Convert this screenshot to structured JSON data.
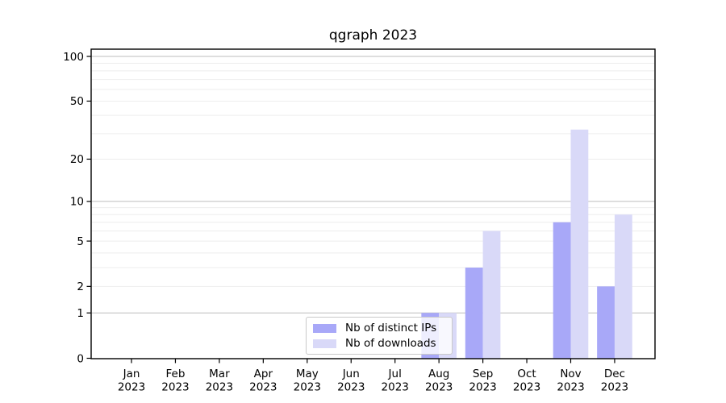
{
  "chart_data": {
    "type": "bar",
    "title": "qgraph 2023",
    "categories": [
      "Jan 2023",
      "Feb 2023",
      "Mar 2023",
      "Apr 2023",
      "May 2023",
      "Jun 2023",
      "Jul 2023",
      "Aug 2023",
      "Sep 2023",
      "Oct 2023",
      "Nov 2023",
      "Dec 2023"
    ],
    "series": [
      {
        "name": "Nb of distinct IPs",
        "color": "#a8a8f8",
        "values": [
          0,
          0,
          0,
          0,
          0,
          0,
          0,
          1,
          3,
          0,
          7,
          2
        ]
      },
      {
        "name": "Nb of downloads",
        "color": "#d9d9f8",
        "values": [
          0,
          0,
          0,
          0,
          0,
          0,
          0,
          1,
          6,
          0,
          32,
          8
        ]
      }
    ],
    "yscale": "log1p",
    "ylim": [
      0,
      112
    ],
    "y_ticks": [
      0,
      1,
      2,
      5,
      10,
      20,
      50,
      100
    ],
    "grid": {
      "major": [
        1,
        10,
        100
      ],
      "minor": [
        2,
        3,
        4,
        5,
        6,
        7,
        8,
        9,
        20,
        30,
        40,
        50,
        60,
        70,
        80,
        90
      ],
      "major_color": "#bdbdbd",
      "minor_color": "#ededed"
    },
    "legend": {
      "location": "lower center"
    },
    "axis_color": "#000000",
    "xlabel": "",
    "ylabel": ""
  }
}
